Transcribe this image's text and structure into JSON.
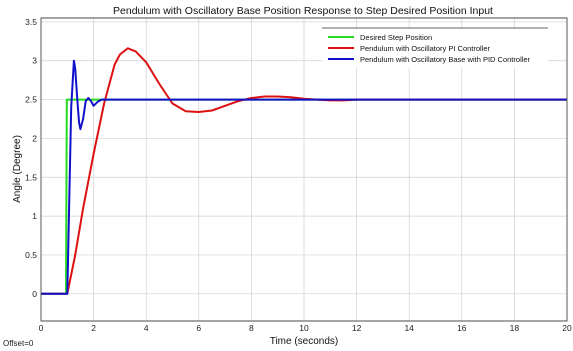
{
  "chart_data": {
    "type": "line",
    "title": "Pendulum with Oscillatory Base Position Response to Step Desired Position Input",
    "xlabel": "Time (seconds)",
    "ylabel": "Angle (Degree)",
    "xlim": [
      0,
      20
    ],
    "ylim": [
      -0.35,
      3.55
    ],
    "x_ticks": [
      0,
      2,
      4,
      6,
      8,
      10,
      12,
      14,
      16,
      18,
      20
    ],
    "y_ticks": [
      0,
      0.5,
      1,
      1.5,
      2,
      2.5,
      3,
      3.5
    ],
    "grid": true,
    "legend_position": "top-right",
    "offset_label": "Offset=0",
    "series": [
      {
        "name": "Desired Step Position",
        "color": "#22dd22",
        "x": [
          0,
          0.95,
          0.98,
          1.0,
          2.0,
          20
        ],
        "y": [
          0,
          0,
          2.5,
          2.5,
          2.5,
          2.5
        ]
      },
      {
        "name": "Pendulum with Oscillatory PI Controller",
        "color": "#dd1111",
        "x": [
          0,
          1.0,
          1.3,
          1.6,
          2.0,
          2.4,
          2.8,
          3.0,
          3.3,
          3.6,
          4.0,
          4.5,
          5.0,
          5.5,
          6.0,
          6.5,
          7.0,
          7.5,
          8.0,
          8.5,
          9.0,
          9.5,
          10.0,
          10.5,
          11.0,
          11.5,
          12.0,
          13.0,
          14.0,
          20
        ],
        "y": [
          0,
          0,
          0.5,
          1.1,
          1.8,
          2.45,
          2.95,
          3.08,
          3.16,
          3.12,
          2.98,
          2.7,
          2.45,
          2.35,
          2.34,
          2.36,
          2.42,
          2.48,
          2.52,
          2.54,
          2.54,
          2.53,
          2.51,
          2.5,
          2.49,
          2.49,
          2.5,
          2.5,
          2.5,
          2.5
        ]
      },
      {
        "name": "Pendulum with Oscillatory Base with PID Controller",
        "color": "#1111cc",
        "x": [
          0,
          1.0,
          1.05,
          1.15,
          1.25,
          1.3,
          1.38,
          1.45,
          1.5,
          1.6,
          1.7,
          1.8,
          1.9,
          2.0,
          2.15,
          2.3,
          2.5,
          3.0,
          20
        ],
        "y": [
          0,
          0,
          0.8,
          2.4,
          3.0,
          2.9,
          2.5,
          2.2,
          2.12,
          2.25,
          2.48,
          2.52,
          2.48,
          2.42,
          2.47,
          2.5,
          2.5,
          2.5,
          2.5
        ]
      }
    ]
  }
}
